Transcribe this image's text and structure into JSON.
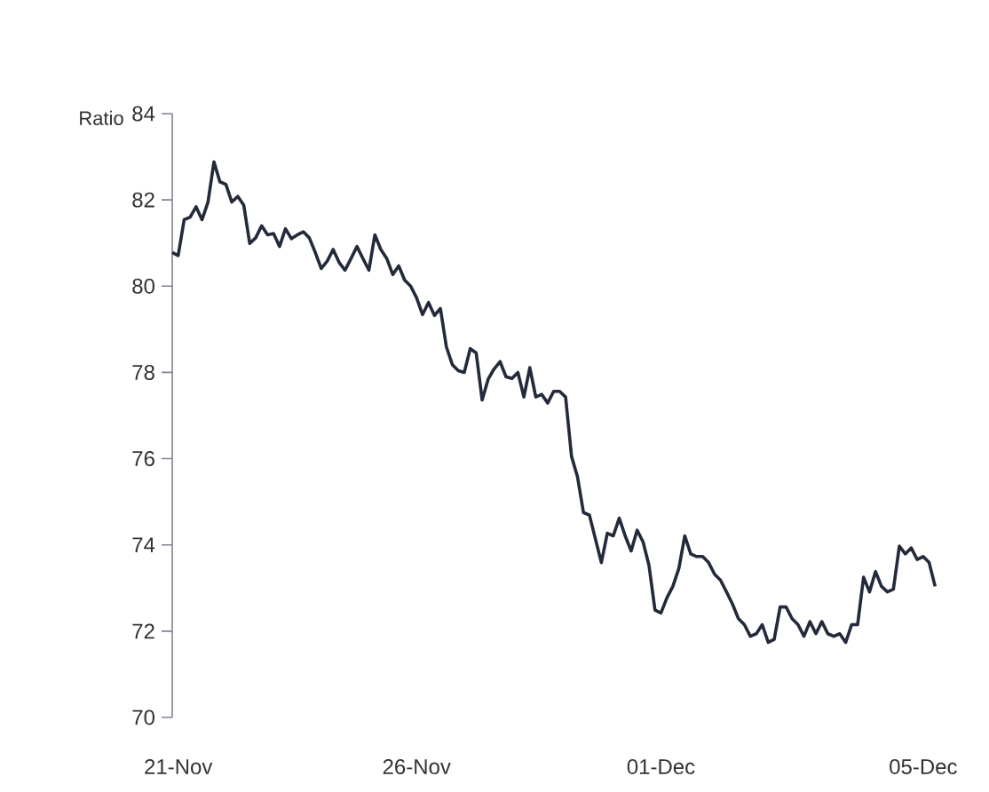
{
  "chart_data": {
    "type": "line",
    "ylabel": "Ratio",
    "categories": [
      null,
      "21-Nov",
      null,
      null,
      null,
      null,
      null,
      null,
      null,
      null,
      null,
      null,
      null,
      null,
      null,
      null,
      null,
      null,
      null,
      null,
      null,
      null,
      null,
      null,
      null,
      null,
      null,
      null,
      null,
      null,
      null,
      null,
      null,
      null,
      null,
      null,
      null,
      null,
      null,
      null,
      null,
      "26-Nov",
      null,
      null,
      null,
      null,
      null,
      null,
      null,
      null,
      null,
      null,
      null,
      null,
      null,
      null,
      null,
      null,
      null,
      null,
      null,
      null,
      null,
      null,
      null,
      null,
      null,
      null,
      null,
      null,
      null,
      null,
      null,
      null,
      null,
      null,
      null,
      null,
      null,
      null,
      null,
      null,
      "01-Dec",
      null,
      null,
      null,
      null,
      null,
      null,
      null,
      null,
      null,
      null,
      null,
      null,
      null,
      null,
      null,
      null,
      null,
      null,
      null,
      null,
      null,
      null,
      null,
      null,
      null,
      null,
      null,
      null,
      null,
      null,
      null,
      null,
      null,
      null,
      null,
      null,
      null,
      null,
      null,
      null,
      null,
      null,
      null,
      "05-Dec",
      null,
      null
    ],
    "values": [
      80.78,
      80.71,
      81.54,
      81.6,
      81.84,
      81.54,
      81.95,
      82.88,
      82.42,
      82.36,
      81.95,
      82.08,
      81.88,
      80.99,
      81.12,
      81.4,
      81.19,
      81.22,
      80.92,
      81.33,
      81.1,
      81.19,
      81.26,
      81.12,
      80.78,
      80.41,
      80.58,
      80.85,
      80.55,
      80.37,
      80.64,
      80.92,
      80.64,
      80.37,
      81.19,
      80.85,
      80.64,
      80.27,
      80.47,
      80.14,
      80.0,
      79.73,
      79.34,
      79.62,
      79.32,
      79.48,
      78.59,
      78.18,
      78.04,
      78.0,
      78.55,
      78.45,
      77.36,
      77.84,
      78.08,
      78.25,
      77.9,
      77.86,
      78.0,
      77.43,
      78.11,
      77.43,
      77.49,
      77.29,
      77.56,
      77.56,
      77.43,
      76.05,
      75.58,
      74.75,
      74.69,
      74.14,
      73.59,
      74.27,
      74.21,
      74.62,
      74.21,
      73.86,
      74.34,
      74.07,
      73.52,
      72.49,
      72.42,
      72.77,
      73.04,
      73.45,
      74.21,
      73.79,
      73.73,
      73.73,
      73.59,
      73.32,
      73.18,
      72.91,
      72.63,
      72.29,
      72.15,
      71.88,
      71.94,
      72.15,
      71.74,
      71.81,
      72.56,
      72.56,
      72.29,
      72.15,
      71.88,
      72.22,
      71.94,
      72.22,
      71.94,
      71.88,
      71.94,
      71.74,
      72.15,
      72.15,
      73.25,
      72.91,
      73.38,
      73.04,
      72.91,
      72.97,
      73.97,
      73.79,
      73.93,
      73.66,
      73.73,
      73.59,
      73.04
    ],
    "color": "#232a3a",
    "ylim": [
      70,
      84
    ],
    "yticks": [
      70,
      72,
      74,
      76,
      78,
      80,
      82,
      84
    ],
    "grid": false,
    "marker": "none",
    "line_style": "solid"
  }
}
